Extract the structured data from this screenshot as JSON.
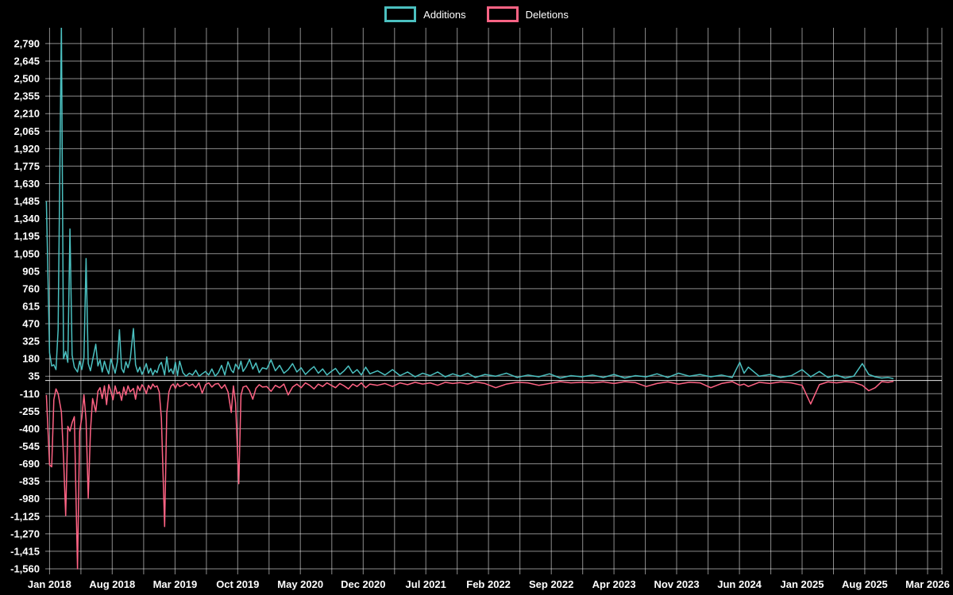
{
  "chart_data": {
    "type": "line",
    "title": "",
    "xlabel": "",
    "ylabel": "",
    "legend_position": "top-center",
    "background": "#000000",
    "grid_color": "rgba(255,255,255,0.55)",
    "zero_line_color": "rgba(255,255,255,0.9)",
    "text_color": "#ffffff",
    "grid": true,
    "zero_line": true,
    "xlim": [
      2017.96,
      2026.3
    ],
    "ylim": [
      -1606,
      2921
    ],
    "y_ticks": [
      2790,
      2645,
      2500,
      2355,
      2210,
      2065,
      1920,
      1775,
      1630,
      1485,
      1340,
      1195,
      1050,
      905,
      760,
      615,
      470,
      325,
      180,
      35,
      -110,
      -255,
      -400,
      -545,
      -690,
      -835,
      -980,
      -1125,
      -1270,
      -1415,
      -1560
    ],
    "x_ticks": [
      {
        "t": 2018.0,
        "label": "Jan 2018"
      },
      {
        "t": 2018.583,
        "label": "Aug 2018"
      },
      {
        "t": 2019.167,
        "label": "Mar 2019"
      },
      {
        "t": 2019.75,
        "label": "Oct 2019"
      },
      {
        "t": 2020.333,
        "label": "May 2020"
      },
      {
        "t": 2020.917,
        "label": "Dec 2020"
      },
      {
        "t": 2021.5,
        "label": "Jul 2021"
      },
      {
        "t": 2022.083,
        "label": "Feb 2022"
      },
      {
        "t": 2022.667,
        "label": "Sep 2022"
      },
      {
        "t": 2023.25,
        "label": "Apr 2023"
      },
      {
        "t": 2023.833,
        "label": "Nov 2023"
      },
      {
        "t": 2024.417,
        "label": "Jun 2024"
      },
      {
        "t": 2025.0,
        "label": "Jan 2025"
      },
      {
        "t": 2025.583,
        "label": "Aug 2025"
      },
      {
        "t": 2026.167,
        "label": "Mar 2026"
      }
    ],
    "x_minor_gridlines": "midpoints-between-ticks",
    "series": [
      {
        "name": "Additions",
        "color": "#4bc0c0"
      },
      {
        "name": "Deletions",
        "color": "#ff6384"
      }
    ],
    "points_format": [
      "decimal_year",
      "additions",
      "deletions"
    ],
    "points": [
      [
        2017.97,
        1485,
        -120
      ],
      [
        2018.0,
        230,
        -700
      ],
      [
        2018.02,
        120,
        -715
      ],
      [
        2018.04,
        130,
        -160
      ],
      [
        2018.06,
        90,
        -70
      ],
      [
        2018.08,
        420,
        -110
      ],
      [
        2018.11,
        2950,
        -260
      ],
      [
        2018.13,
        180,
        -640
      ],
      [
        2018.15,
        240,
        -1120
      ],
      [
        2018.17,
        150,
        -380
      ],
      [
        2018.19,
        1255,
        -420
      ],
      [
        2018.21,
        210,
        -350
      ],
      [
        2018.23,
        110,
        -300
      ],
      [
        2018.26,
        70,
        -1560
      ],
      [
        2018.28,
        160,
        -420
      ],
      [
        2018.3,
        90,
        -310
      ],
      [
        2018.32,
        190,
        -120
      ],
      [
        2018.34,
        1010,
        -330
      ],
      [
        2018.36,
        140,
        -975
      ],
      [
        2018.38,
        80,
        -420
      ],
      [
        2018.4,
        170,
        -150
      ],
      [
        2018.43,
        300,
        -260
      ],
      [
        2018.45,
        120,
        -90
      ],
      [
        2018.47,
        170,
        -60
      ],
      [
        2018.49,
        70,
        -150
      ],
      [
        2018.51,
        160,
        -45
      ],
      [
        2018.53,
        100,
        -200
      ],
      [
        2018.55,
        55,
        -35
      ],
      [
        2018.57,
        180,
        -90
      ],
      [
        2018.59,
        120,
        -160
      ],
      [
        2018.61,
        60,
        -45
      ],
      [
        2018.63,
        150,
        -110
      ],
      [
        2018.65,
        420,
        -95
      ],
      [
        2018.67,
        100,
        -165
      ],
      [
        2018.69,
        65,
        -55
      ],
      [
        2018.71,
        155,
        -120
      ],
      [
        2018.73,
        105,
        -45
      ],
      [
        2018.75,
        170,
        -95
      ],
      [
        2018.78,
        430,
        -65
      ],
      [
        2018.8,
        130,
        -155
      ],
      [
        2018.82,
        70,
        -45
      ],
      [
        2018.84,
        110,
        -85
      ],
      [
        2018.86,
        50,
        -35
      ],
      [
        2018.88,
        90,
        -60
      ],
      [
        2018.9,
        140,
        -110
      ],
      [
        2018.92,
        60,
        -40
      ],
      [
        2018.94,
        100,
        -70
      ],
      [
        2018.96,
        45,
        -30
      ],
      [
        2018.98,
        85,
        -55
      ],
      [
        2019.0,
        65,
        -45
      ],
      [
        2019.02,
        125,
        -95
      ],
      [
        2019.04,
        150,
        -310
      ],
      [
        2019.07,
        45,
        -1210
      ],
      [
        2019.09,
        195,
        -270
      ],
      [
        2019.11,
        70,
        -95
      ],
      [
        2019.13,
        95,
        -45
      ],
      [
        2019.15,
        55,
        -30
      ],
      [
        2019.17,
        150,
        -65
      ],
      [
        2019.19,
        40,
        -25
      ],
      [
        2019.21,
        160,
        -50
      ],
      [
        2019.24,
        65,
        -40
      ],
      [
        2019.27,
        35,
        -20
      ],
      [
        2019.3,
        60,
        -45
      ],
      [
        2019.33,
        45,
        -30
      ],
      [
        2019.36,
        85,
        -60
      ],
      [
        2019.39,
        35,
        -20
      ],
      [
        2019.42,
        55,
        -105
      ],
      [
        2019.45,
        75,
        -35
      ],
      [
        2019.48,
        45,
        -20
      ],
      [
        2019.51,
        95,
        -55
      ],
      [
        2019.54,
        35,
        -30
      ],
      [
        2019.57,
        65,
        -25
      ],
      [
        2019.6,
        125,
        -65
      ],
      [
        2019.63,
        45,
        -35
      ],
      [
        2019.66,
        155,
        -95
      ],
      [
        2019.69,
        85,
        -265
      ],
      [
        2019.71,
        65,
        -45
      ],
      [
        2019.73,
        135,
        -185
      ],
      [
        2019.76,
        95,
        -855
      ],
      [
        2019.78,
        160,
        -125
      ],
      [
        2019.8,
        75,
        -55
      ],
      [
        2019.83,
        115,
        -45
      ],
      [
        2019.86,
        175,
        -85
      ],
      [
        2019.89,
        95,
        -155
      ],
      [
        2019.92,
        145,
        -65
      ],
      [
        2019.95,
        65,
        -35
      ],
      [
        2019.98,
        105,
        -55
      ],
      [
        2020.02,
        95,
        -50
      ],
      [
        2020.06,
        170,
        -90
      ],
      [
        2020.1,
        80,
        -40
      ],
      [
        2020.14,
        125,
        -60
      ],
      [
        2020.18,
        60,
        -30
      ],
      [
        2020.22,
        90,
        -120
      ],
      [
        2020.26,
        140,
        -55
      ],
      [
        2020.3,
        70,
        -30
      ],
      [
        2020.34,
        105,
        -60
      ],
      [
        2020.38,
        50,
        -20
      ],
      [
        2020.42,
        85,
        -40
      ],
      [
        2020.46,
        115,
        -70
      ],
      [
        2020.5,
        60,
        -30
      ],
      [
        2020.54,
        95,
        -50
      ],
      [
        2020.58,
        45,
        -20
      ],
      [
        2020.62,
        75,
        -40
      ],
      [
        2020.66,
        100,
        -60
      ],
      [
        2020.7,
        50,
        -25
      ],
      [
        2020.74,
        80,
        -45
      ],
      [
        2020.78,
        120,
        -70
      ],
      [
        2020.82,
        60,
        -30
      ],
      [
        2020.86,
        90,
        -50
      ],
      [
        2020.9,
        45,
        -20
      ],
      [
        2020.94,
        110,
        -60
      ],
      [
        2020.98,
        55,
        -30
      ],
      [
        2021.05,
        80,
        -40
      ],
      [
        2021.12,
        45,
        -25
      ],
      [
        2021.19,
        90,
        -50
      ],
      [
        2021.26,
        40,
        -20
      ],
      [
        2021.33,
        70,
        -35
      ],
      [
        2021.4,
        30,
        -15
      ],
      [
        2021.47,
        60,
        -30
      ],
      [
        2021.54,
        40,
        -20
      ],
      [
        2021.61,
        70,
        -40
      ],
      [
        2021.68,
        30,
        -15
      ],
      [
        2021.75,
        55,
        -25
      ],
      [
        2021.82,
        35,
        -18
      ],
      [
        2021.89,
        60,
        -30
      ],
      [
        2021.96,
        25,
        -12
      ],
      [
        2022.05,
        50,
        -25
      ],
      [
        2022.15,
        35,
        -60
      ],
      [
        2022.25,
        60,
        -30
      ],
      [
        2022.35,
        25,
        -15
      ],
      [
        2022.45,
        45,
        -20
      ],
      [
        2022.55,
        30,
        -40
      ],
      [
        2022.65,
        55,
        -25
      ],
      [
        2022.75,
        20,
        -10
      ],
      [
        2022.85,
        40,
        -20
      ],
      [
        2022.95,
        30,
        -15
      ],
      [
        2023.05,
        45,
        -20
      ],
      [
        2023.15,
        25,
        -12
      ],
      [
        2023.25,
        50,
        -25
      ],
      [
        2023.35,
        20,
        -10
      ],
      [
        2023.45,
        40,
        -18
      ],
      [
        2023.55,
        30,
        -50
      ],
      [
        2023.65,
        55,
        -25
      ],
      [
        2023.75,
        25,
        -12
      ],
      [
        2023.85,
        60,
        -30
      ],
      [
        2023.95,
        35,
        -15
      ],
      [
        2024.05,
        50,
        -20
      ],
      [
        2024.15,
        30,
        -60
      ],
      [
        2024.25,
        45,
        -25
      ],
      [
        2024.35,
        25,
        -10
      ],
      [
        2024.42,
        150,
        -40
      ],
      [
        2024.46,
        60,
        -30
      ],
      [
        2024.5,
        110,
        -50
      ],
      [
        2024.6,
        35,
        -15
      ],
      [
        2024.7,
        50,
        -25
      ],
      [
        2024.8,
        25,
        -12
      ],
      [
        2024.9,
        40,
        -20
      ],
      [
        2025.0,
        90,
        -40
      ],
      [
        2025.08,
        30,
        -195
      ],
      [
        2025.16,
        75,
        -35
      ],
      [
        2025.24,
        25,
        -12
      ],
      [
        2025.32,
        45,
        -20
      ],
      [
        2025.4,
        20,
        -10
      ],
      [
        2025.48,
        35,
        -15
      ],
      [
        2025.56,
        140,
        -40
      ],
      [
        2025.62,
        50,
        -85
      ],
      [
        2025.68,
        30,
        -60
      ],
      [
        2025.74,
        20,
        -10
      ],
      [
        2025.8,
        25,
        -15
      ],
      [
        2025.85,
        15,
        -8
      ]
    ]
  }
}
